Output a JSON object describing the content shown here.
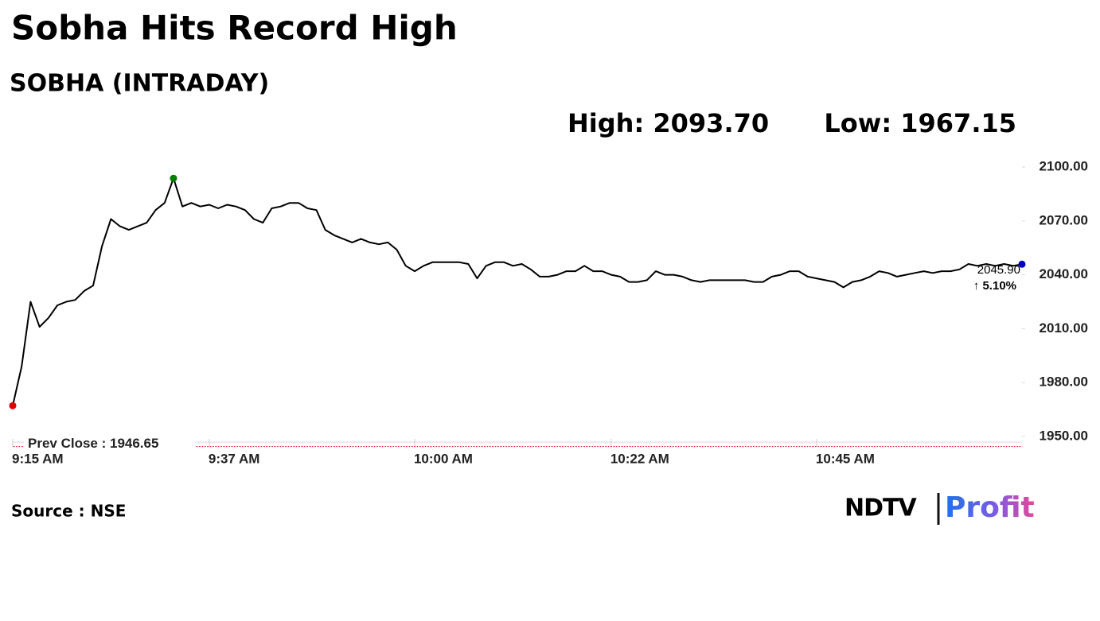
{
  "chart_data": {
    "type": "line",
    "title": "Sobha Hits Record High",
    "subtitle": "SOBHA (INTRADAY)",
    "high_text": "High: 2093.70",
    "low_text": "Low: 1967.15",
    "last_value_label": "2045.90",
    "change_label": "↑ 5.10%",
    "change_color": "#008000",
    "prev_close": {
      "value": 1946.65,
      "label": "Prev Close : 1946.65",
      "color": "#e00000"
    },
    "color": "#000000",
    "low_marker_color": "#e00000",
    "high_marker_color": "#008000",
    "last_marker_color": "#0000c0",
    "x": [
      "9:15 AM",
      "9:16 AM",
      "9:17 AM",
      "9:18 AM",
      "9:19 AM",
      "9:20 AM",
      "9:21 AM",
      "9:22 AM",
      "9:23 AM",
      "9:24 AM",
      "9:25 AM",
      "9:26 AM",
      "9:27 AM",
      "9:28 AM",
      "9:29 AM",
      "9:30 AM",
      "9:31 AM",
      "9:32 AM",
      "9:33 AM",
      "9:34 AM",
      "9:35 AM",
      "9:36 AM",
      "9:37 AM",
      "9:38 AM",
      "9:39 AM",
      "9:40 AM",
      "9:41 AM",
      "9:42 AM",
      "9:43 AM",
      "9:44 AM",
      "9:45 AM",
      "9:46 AM",
      "9:47 AM",
      "9:48 AM",
      "9:49 AM",
      "9:50 AM",
      "9:51 AM",
      "9:52 AM",
      "9:53 AM",
      "9:54 AM",
      "9:55 AM",
      "9:56 AM",
      "9:57 AM",
      "9:58 AM",
      "9:59 AM",
      "10:00 AM",
      "10:01 AM",
      "10:02 AM",
      "10:03 AM",
      "10:04 AM",
      "10:05 AM",
      "10:06 AM",
      "10:07 AM",
      "10:08 AM",
      "10:09 AM",
      "10:10 AM",
      "10:11 AM",
      "10:12 AM",
      "10:13 AM",
      "10:14 AM",
      "10:15 AM",
      "10:16 AM",
      "10:17 AM",
      "10:18 AM",
      "10:19 AM",
      "10:20 AM",
      "10:21 AM",
      "10:22 AM",
      "10:23 AM",
      "10:24 AM",
      "10:25 AM",
      "10:26 AM",
      "10:27 AM",
      "10:28 AM",
      "10:29 AM",
      "10:30 AM",
      "10:31 AM",
      "10:32 AM",
      "10:33 AM",
      "10:34 AM",
      "10:35 AM",
      "10:36 AM",
      "10:37 AM",
      "10:38 AM",
      "10:39 AM",
      "10:40 AM",
      "10:41 AM",
      "10:42 AM",
      "10:43 AM",
      "10:44 AM",
      "10:45 AM",
      "10:46 AM",
      "10:47 AM",
      "10:48 AM",
      "10:49 AM",
      "10:50 AM",
      "10:51 AM",
      "10:52 AM",
      "10:53 AM",
      "10:54 AM",
      "10:55 AM",
      "10:56 AM",
      "10:57 AM",
      "10:58 AM",
      "10:59 AM",
      "11:00 AM",
      "11:01 AM",
      "11:02 AM",
      "11:03 AM",
      "11:04 AM",
      "11:05 AM",
      "11:06 AM",
      "11:07 AM",
      "11:08 AM"
    ],
    "values": [
      1967.15,
      1989,
      2025,
      2011,
      2016,
      2023,
      2025,
      2026,
      2031,
      2034,
      2056,
      2071,
      2067,
      2065,
      2067,
      2069,
      2076,
      2080,
      2093.7,
      2078,
      2080,
      2078,
      2079,
      2077,
      2079,
      2078,
      2076,
      2071,
      2069,
      2077,
      2078,
      2080,
      2080,
      2077,
      2076,
      2065,
      2062,
      2060,
      2058,
      2060,
      2058,
      2057,
      2058,
      2054,
      2045,
      2042,
      2045,
      2047,
      2047,
      2047,
      2047,
      2046,
      2038,
      2045,
      2047,
      2047,
      2045,
      2046,
      2043,
      2039,
      2039,
      2040,
      2042,
      2042,
      2045,
      2042,
      2042,
      2040,
      2039,
      2036,
      2036,
      2037,
      2042,
      2040,
      2040,
      2039,
      2037,
      2036,
      2037,
      2037,
      2037,
      2037,
      2037,
      2036,
      2036,
      2039,
      2040,
      2042,
      2042,
      2039,
      2038,
      2037,
      2036,
      2033,
      2036,
      2037,
      2039,
      2042,
      2041,
      2039,
      2040,
      2041,
      2042,
      2041,
      2042,
      2042,
      2043,
      2046,
      2045,
      2046,
      2045,
      2046,
      2045,
      2045.9
    ],
    "xlim": [
      "9:15 AM",
      "11:08 AM"
    ],
    "xticks": [
      "9:15 AM",
      "9:37 AM",
      "10:00 AM",
      "10:22 AM",
      "10:45 AM"
    ],
    "ylim": [
      1946,
      2100
    ],
    "yticks": [
      {
        "value": 1950,
        "label": "1950.00"
      },
      {
        "value": 1980,
        "label": "1980.00"
      },
      {
        "value": 2010,
        "label": "2010.00"
      },
      {
        "value": 2040,
        "label": "2040.00"
      },
      {
        "value": 2070,
        "label": "2070.00"
      },
      {
        "value": 2100,
        "label": "2100.00"
      }
    ],
    "grid": false,
    "source": "Source : NSE",
    "logo": {
      "brand": "NDTV",
      "product": "Profit"
    }
  }
}
